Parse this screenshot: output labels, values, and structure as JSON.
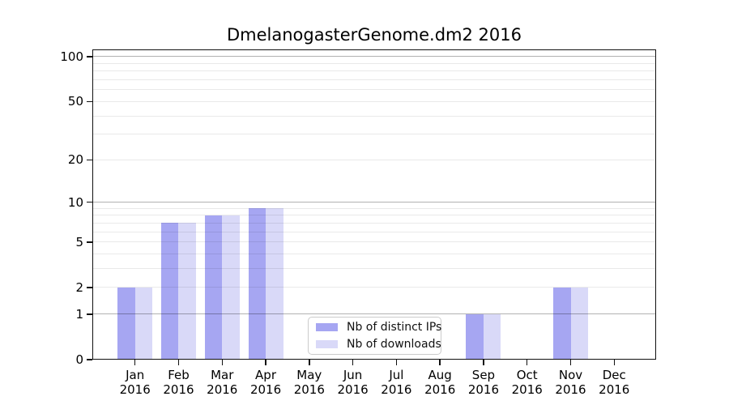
{
  "chart_data": {
    "type": "bar",
    "title": "DmelanogasterGenome.dm2 2016",
    "x_categories": [
      "Jan",
      "Feb",
      "Mar",
      "Apr",
      "May",
      "Jun",
      "Jul",
      "Aug",
      "Sep",
      "Oct",
      "Nov",
      "Dec"
    ],
    "x_year": "2016",
    "series": [
      {
        "name": "Nb of distinct IPs",
        "color": "#a6a6f2",
        "values": [
          2,
          7,
          8,
          9,
          0,
          0,
          0,
          0,
          1,
          0,
          2,
          0
        ]
      },
      {
        "name": "Nb of downloads",
        "color": "#d9d9f8",
        "values": [
          2,
          7,
          8,
          9,
          0,
          0,
          0,
          0,
          1,
          0,
          2,
          0
        ]
      }
    ],
    "y_scale": "log10(1+x)",
    "y_ticks": [
      0,
      1,
      2,
      5,
      10,
      20,
      50,
      100
    ],
    "y_gridlines_major": [
      1,
      10,
      100
    ],
    "y_gridlines_minor": [
      2,
      3,
      4,
      5,
      6,
      7,
      8,
      9,
      20,
      30,
      40,
      50,
      60,
      70,
      80,
      90
    ],
    "ylim": [
      0,
      112
    ],
    "grid": "on",
    "legend_position": "lower center",
    "colors": {
      "axis": "#111111",
      "grid_major": "#b5b5b5",
      "grid_minor": "#e9e9e9",
      "background": "#ffffff"
    }
  }
}
